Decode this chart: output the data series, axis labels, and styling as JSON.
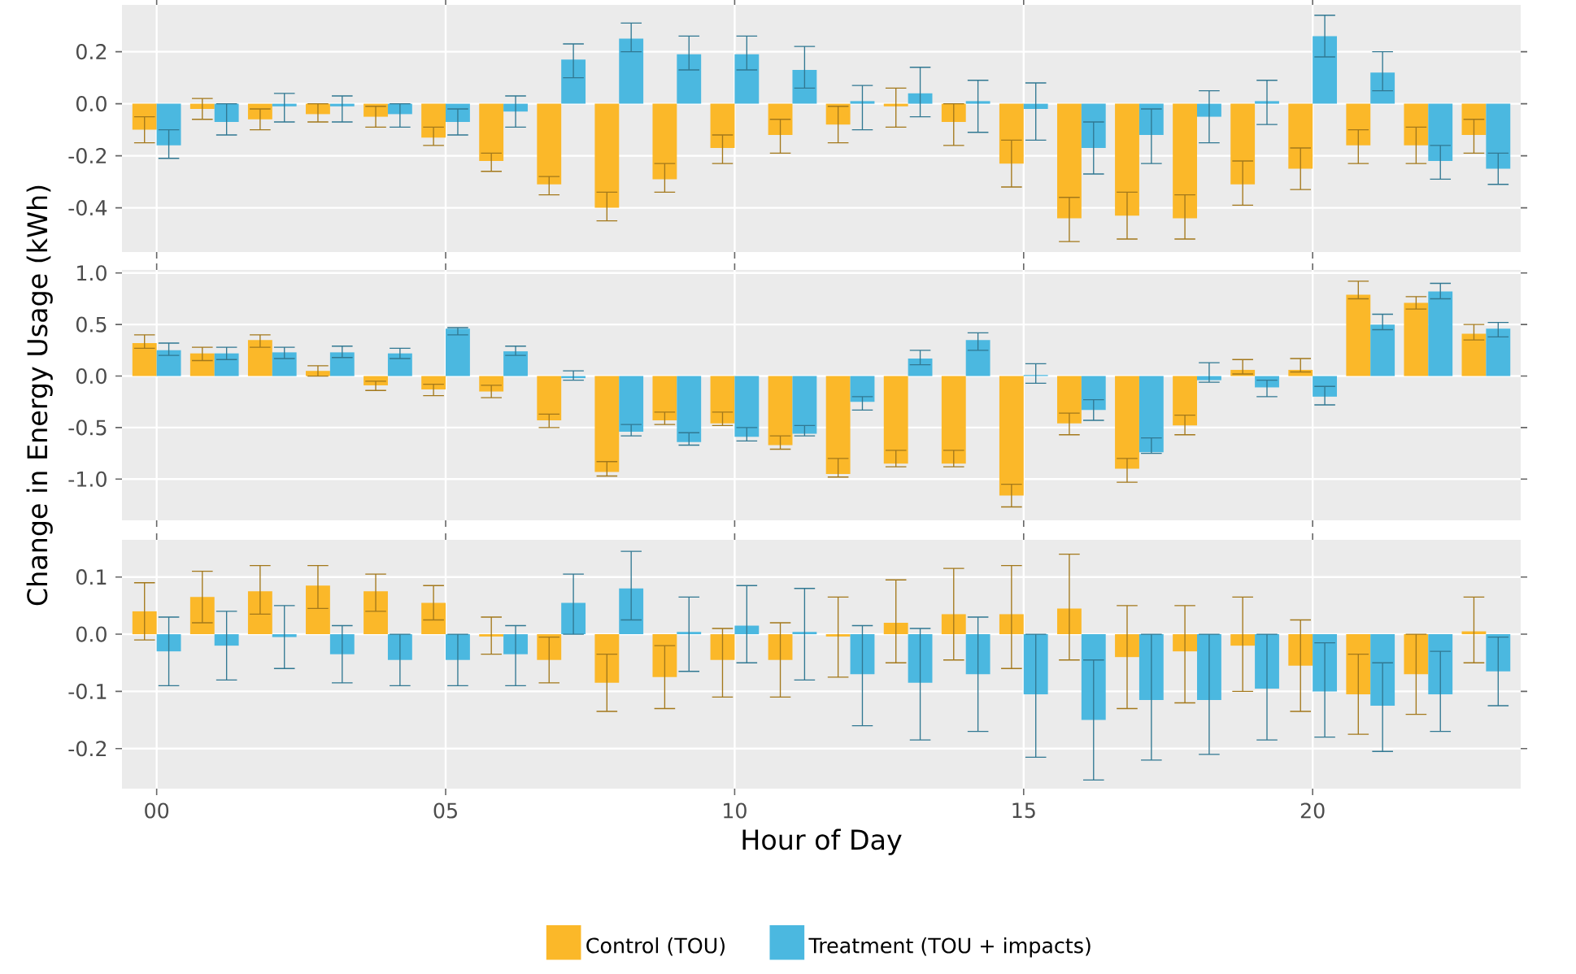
{
  "chart_data": [
    {
      "type": "bar",
      "x": [
        0,
        1,
        2,
        3,
        4,
        5,
        6,
        7,
        8,
        9,
        10,
        11,
        12,
        13,
        14,
        15,
        16,
        17,
        18,
        19,
        20,
        21,
        22,
        23
      ],
      "xlim": [
        -0.6,
        23.6
      ],
      "xticks": [
        {
          "value": 0,
          "label": null
        },
        {
          "value": 5,
          "label": null
        },
        {
          "value": 10,
          "label": null
        },
        {
          "value": 15,
          "label": null
        },
        {
          "value": 20,
          "label": null
        }
      ],
      "ylim": [
        -0.57,
        0.38
      ],
      "yticks": [
        {
          "value": -0.4,
          "label": "-0.4"
        },
        {
          "value": -0.2,
          "label": "-0.2"
        },
        {
          "value": 0,
          "label": "0.0"
        },
        {
          "value": 0.2,
          "label": "0.2"
        }
      ],
      "grid": true,
      "tick_labels": "y",
      "series": [
        {
          "color": "#fbb829",
          "values": [
            -0.1,
            -0.02,
            -0.06,
            -0.04,
            -0.05,
            -0.13,
            -0.22,
            -0.31,
            -0.4,
            -0.29,
            -0.17,
            -0.12,
            -0.08,
            -0.01,
            -0.07,
            -0.23,
            -0.44,
            -0.43,
            -0.44,
            -0.31,
            -0.25,
            -0.16,
            -0.16,
            -0.12
          ],
          "errors": [
            [
              -0.15,
              -0.05
            ],
            [
              -0.06,
              0.02
            ],
            [
              -0.1,
              -0.02
            ],
            [
              -0.07,
              0.0
            ],
            [
              -0.09,
              -0.01
            ],
            [
              -0.16,
              -0.09
            ],
            [
              -0.26,
              -0.19
            ],
            [
              -0.35,
              -0.28
            ],
            [
              -0.45,
              -0.34
            ],
            [
              -0.34,
              -0.23
            ],
            [
              -0.23,
              -0.12
            ],
            [
              -0.19,
              -0.06
            ],
            [
              -0.15,
              -0.01
            ],
            [
              -0.09,
              0.06
            ],
            [
              -0.16,
              0.0
            ],
            [
              -0.32,
              -0.14
            ],
            [
              -0.53,
              -0.36
            ],
            [
              -0.52,
              -0.34
            ],
            [
              -0.52,
              -0.35
            ],
            [
              -0.39,
              -0.22
            ],
            [
              -0.33,
              -0.17
            ],
            [
              -0.23,
              -0.1
            ],
            [
              -0.23,
              -0.09
            ],
            [
              -0.19,
              -0.06
            ]
          ]
        },
        {
          "color": "#4bb8e0",
          "values": [
            -0.16,
            -0.07,
            -0.01,
            -0.01,
            -0.04,
            -0.07,
            -0.03,
            0.17,
            0.25,
            0.19,
            0.19,
            0.13,
            0.01,
            0.04,
            0.01,
            -0.02,
            -0.17,
            -0.12,
            -0.05,
            0.01,
            0.26,
            0.12,
            -0.22,
            -0.25
          ],
          "errors": [
            [
              -0.21,
              -0.1
            ],
            [
              -0.12,
              0.0
            ],
            [
              -0.07,
              0.04
            ],
            [
              -0.07,
              0.03
            ],
            [
              -0.09,
              0.0
            ],
            [
              -0.12,
              -0.02
            ],
            [
              -0.09,
              0.03
            ],
            [
              0.1,
              0.23
            ],
            [
              0.2,
              0.31
            ],
            [
              0.13,
              0.26
            ],
            [
              0.13,
              0.26
            ],
            [
              0.06,
              0.22
            ],
            [
              -0.1,
              0.07
            ],
            [
              -0.05,
              0.14
            ],
            [
              -0.11,
              0.09
            ],
            [
              -0.14,
              0.08
            ],
            [
              -0.27,
              -0.07
            ],
            [
              -0.23,
              -0.02
            ],
            [
              -0.15,
              0.05
            ],
            [
              -0.08,
              0.09
            ],
            [
              0.18,
              0.34
            ],
            [
              0.05,
              0.2
            ],
            [
              -0.29,
              -0.16
            ],
            [
              -0.31,
              -0.19
            ]
          ]
        }
      ]
    },
    {
      "type": "bar",
      "x": [
        0,
        1,
        2,
        3,
        4,
        5,
        6,
        7,
        8,
        9,
        10,
        11,
        12,
        13,
        14,
        15,
        16,
        17,
        18,
        19,
        20,
        21,
        22,
        23
      ],
      "xlim": [
        -0.6,
        23.6
      ],
      "xticks": [
        {
          "value": 0,
          "label": null
        },
        {
          "value": 5,
          "label": null
        },
        {
          "value": 10,
          "label": null
        },
        {
          "value": 15,
          "label": null
        },
        {
          "value": 20,
          "label": null
        }
      ],
      "ylim": [
        -1.4,
        1.03
      ],
      "yticks": [
        {
          "value": -1,
          "label": "-1.0"
        },
        {
          "value": -0.5,
          "label": "-0.5"
        },
        {
          "value": 0,
          "label": "0.0"
        },
        {
          "value": 0.5,
          "label": "0.5"
        },
        {
          "value": 1,
          "label": "1.0"
        }
      ],
      "grid": true,
      "tick_labels": "y",
      "ylabel": "Change in Energy Usage (kWh)",
      "series": [
        {
          "color": "#fbb829",
          "values": [
            0.32,
            0.22,
            0.35,
            0.05,
            -0.09,
            -0.13,
            -0.15,
            -0.43,
            -0.93,
            -0.43,
            -0.46,
            -0.67,
            -0.95,
            -0.85,
            -0.85,
            -1.16,
            -0.46,
            -0.9,
            -0.48,
            0.06,
            0.06,
            0.79,
            0.71,
            0.41
          ],
          "errors": [
            [
              0.27,
              0.4
            ],
            [
              0.15,
              0.28
            ],
            [
              0.28,
              0.4
            ],
            [
              0.0,
              0.1
            ],
            [
              -0.14,
              -0.05
            ],
            [
              -0.19,
              -0.08
            ],
            [
              -0.21,
              -0.09
            ],
            [
              -0.5,
              -0.37
            ],
            [
              -0.97,
              -0.83
            ],
            [
              -0.47,
              -0.35
            ],
            [
              -0.48,
              -0.35
            ],
            [
              -0.71,
              -0.58
            ],
            [
              -0.98,
              -0.8
            ],
            [
              -0.88,
              -0.72
            ],
            [
              -0.88,
              -0.72
            ],
            [
              -1.27,
              -1.05
            ],
            [
              -0.57,
              -0.36
            ],
            [
              -1.03,
              -0.8
            ],
            [
              -0.57,
              -0.38
            ],
            [
              0.02,
              0.16
            ],
            [
              0.04,
              0.17
            ],
            [
              0.75,
              0.92
            ],
            [
              0.65,
              0.77
            ],
            [
              0.35,
              0.5
            ]
          ]
        },
        {
          "color": "#4bb8e0",
          "values": [
            0.25,
            0.22,
            0.23,
            0.23,
            0.22,
            0.46,
            0.24,
            -0.02,
            -0.54,
            -0.64,
            -0.59,
            -0.56,
            -0.25,
            0.17,
            0.35,
            0.01,
            -0.33,
            -0.74,
            -0.04,
            -0.11,
            -0.2,
            0.5,
            0.82,
            0.46
          ],
          "errors": [
            [
              0.2,
              0.32
            ],
            [
              0.16,
              0.28
            ],
            [
              0.17,
              0.28
            ],
            [
              0.18,
              0.29
            ],
            [
              0.17,
              0.27
            ],
            [
              0.4,
              0.47
            ],
            [
              0.2,
              0.29
            ],
            [
              -0.04,
              0.05
            ],
            [
              -0.58,
              -0.47
            ],
            [
              -0.67,
              -0.55
            ],
            [
              -0.63,
              -0.5
            ],
            [
              -0.58,
              -0.48
            ],
            [
              -0.33,
              -0.2
            ],
            [
              0.11,
              0.25
            ],
            [
              0.25,
              0.42
            ],
            [
              -0.07,
              0.12
            ],
            [
              -0.43,
              -0.23
            ],
            [
              -0.75,
              -0.6
            ],
            [
              -0.06,
              0.13
            ],
            [
              -0.2,
              -0.04
            ],
            [
              -0.28,
              -0.1
            ],
            [
              0.45,
              0.6
            ],
            [
              0.75,
              0.9
            ],
            [
              0.38,
              0.52
            ]
          ]
        }
      ]
    },
    {
      "type": "bar",
      "x": [
        0,
        1,
        2,
        3,
        4,
        5,
        6,
        7,
        8,
        9,
        10,
        11,
        12,
        13,
        14,
        15,
        16,
        17,
        18,
        19,
        20,
        21,
        22,
        23
      ],
      "xlim": [
        -0.6,
        23.6
      ],
      "xticks": [
        {
          "value": 0,
          "label": "00"
        },
        {
          "value": 5,
          "label": "05"
        },
        {
          "value": 10,
          "label": "10"
        },
        {
          "value": 15,
          "label": "15"
        },
        {
          "value": 20,
          "label": "20"
        }
      ],
      "ylim": [
        -0.27,
        0.165
      ],
      "yticks": [
        {
          "value": -0.2,
          "label": "-0.2"
        },
        {
          "value": -0.1,
          "label": "-0.1"
        },
        {
          "value": 0,
          "label": "0.0"
        },
        {
          "value": 0.1,
          "label": "0.1"
        }
      ],
      "grid": true,
      "xlabel": "Hour of Day",
      "legend": "bottom",
      "series": [
        {
          "name": "Control (TOU)",
          "color": "#fbb829",
          "values": [
            0.04,
            0.065,
            0.075,
            0.085,
            0.075,
            0.055,
            -0.004,
            -0.045,
            -0.085,
            -0.075,
            -0.045,
            -0.045,
            -0.004,
            0.02,
            0.035,
            0.035,
            0.045,
            -0.04,
            -0.03,
            -0.02,
            -0.055,
            -0.105,
            -0.07,
            0.005
          ],
          "errors": [
            [
              -0.01,
              0.09
            ],
            [
              0.02,
              0.11
            ],
            [
              0.035,
              0.12
            ],
            [
              0.045,
              0.12
            ],
            [
              0.04,
              0.105
            ],
            [
              0.025,
              0.085
            ],
            [
              -0.035,
              0.03
            ],
            [
              -0.085,
              -0.005
            ],
            [
              -0.135,
              -0.035
            ],
            [
              -0.13,
              -0.02
            ],
            [
              -0.11,
              0.01
            ],
            [
              -0.11,
              0.02
            ],
            [
              -0.075,
              0.065
            ],
            [
              -0.05,
              0.095
            ],
            [
              -0.045,
              0.115
            ],
            [
              -0.06,
              0.12
            ],
            [
              -0.045,
              0.14
            ],
            [
              -0.13,
              0.05
            ],
            [
              -0.12,
              0.05
            ],
            [
              -0.1,
              0.065
            ],
            [
              -0.135,
              0.025
            ],
            [
              -0.175,
              -0.035
            ],
            [
              -0.14,
              0.0
            ],
            [
              -0.05,
              0.065
            ]
          ]
        },
        {
          "name": "Treatment (TOU + impacts)",
          "color": "#4bb8e0",
          "values": [
            -0.03,
            -0.02,
            -0.005,
            -0.035,
            -0.045,
            -0.045,
            -0.035,
            0.055,
            0.08,
            0.004,
            0.015,
            0.004,
            -0.07,
            -0.085,
            -0.07,
            -0.105,
            -0.15,
            -0.115,
            -0.115,
            -0.095,
            -0.1,
            -0.125,
            -0.105,
            -0.065
          ],
          "errors": [
            [
              -0.09,
              0.03
            ],
            [
              -0.08,
              0.04
            ],
            [
              -0.06,
              0.05
            ],
            [
              -0.085,
              0.015
            ],
            [
              -0.09,
              0.0
            ],
            [
              -0.09,
              0.0
            ],
            [
              -0.09,
              0.015
            ],
            [
              0.0,
              0.105
            ],
            [
              0.025,
              0.145
            ],
            [
              -0.065,
              0.065
            ],
            [
              -0.05,
              0.085
            ],
            [
              -0.08,
              0.08
            ],
            [
              -0.16,
              0.015
            ],
            [
              -0.185,
              0.01
            ],
            [
              -0.17,
              0.03
            ],
            [
              -0.215,
              0.0
            ],
            [
              -0.255,
              -0.045
            ],
            [
              -0.22,
              0.0
            ],
            [
              -0.21,
              0.0
            ],
            [
              -0.185,
              0.0
            ],
            [
              -0.18,
              -0.015
            ],
            [
              -0.205,
              -0.05
            ],
            [
              -0.17,
              -0.03
            ],
            [
              -0.125,
              -0.005
            ]
          ]
        }
      ]
    }
  ]
}
